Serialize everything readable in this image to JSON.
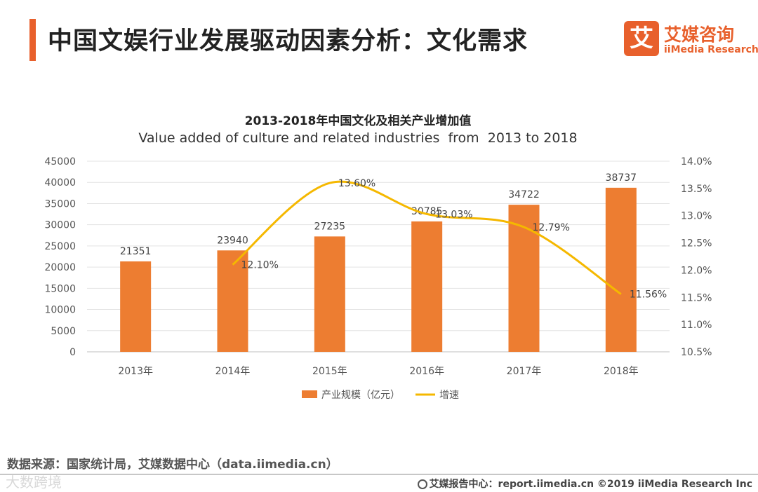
{
  "header": {
    "title": "中国文娱行业发展驱动因素分析：文化需求"
  },
  "logo": {
    "mark": "艾",
    "name_cn": "艾媒咨询",
    "name_en": "iiMedia Research"
  },
  "chart_data": {
    "type": "bar",
    "title": "2013-2018年中国文化及相关产业增加值",
    "subtitle": "Value added of culture and related industries  from  2013 to 2018",
    "categories": [
      "2013年",
      "2014年",
      "2015年",
      "2016年",
      "2017年",
      "2018年"
    ],
    "series": [
      {
        "name": "产业规模（亿元）",
        "type": "bar",
        "axis": "left",
        "color": "#ed7d31",
        "values": [
          21351,
          23940,
          27235,
          30785,
          34722,
          38737
        ]
      },
      {
        "name": "增速",
        "type": "line",
        "axis": "right",
        "color": "#f5b800",
        "smooth": true,
        "values": [
          null,
          12.1,
          13.6,
          13.03,
          12.79,
          11.56
        ],
        "labels": [
          "",
          "12.10%",
          "13.60%",
          "13.03%",
          "12.79%",
          "11.56%"
        ]
      }
    ],
    "y_left": {
      "ylim": [
        0,
        45000
      ],
      "ticks": [
        "0",
        "5000",
        "10000",
        "15000",
        "20000",
        "25000",
        "30000",
        "35000",
        "40000",
        "45000"
      ]
    },
    "y_right": {
      "ylim": [
        10.5,
        14.0
      ],
      "ticks": [
        "10.5%",
        "11.0%",
        "11.5%",
        "12.0%",
        "12.5%",
        "13.0%",
        "13.5%",
        "14.0%"
      ]
    },
    "grid": true,
    "legend": "bottom-center"
  },
  "source": "数据来源：国家统计局，艾媒数据中心（data.iimedia.cn）",
  "watermark": "大数跨境",
  "footer": {
    "text": "艾媒报告中心：report.iimedia.cn  ©2019  iiMedia Research  Inc"
  }
}
